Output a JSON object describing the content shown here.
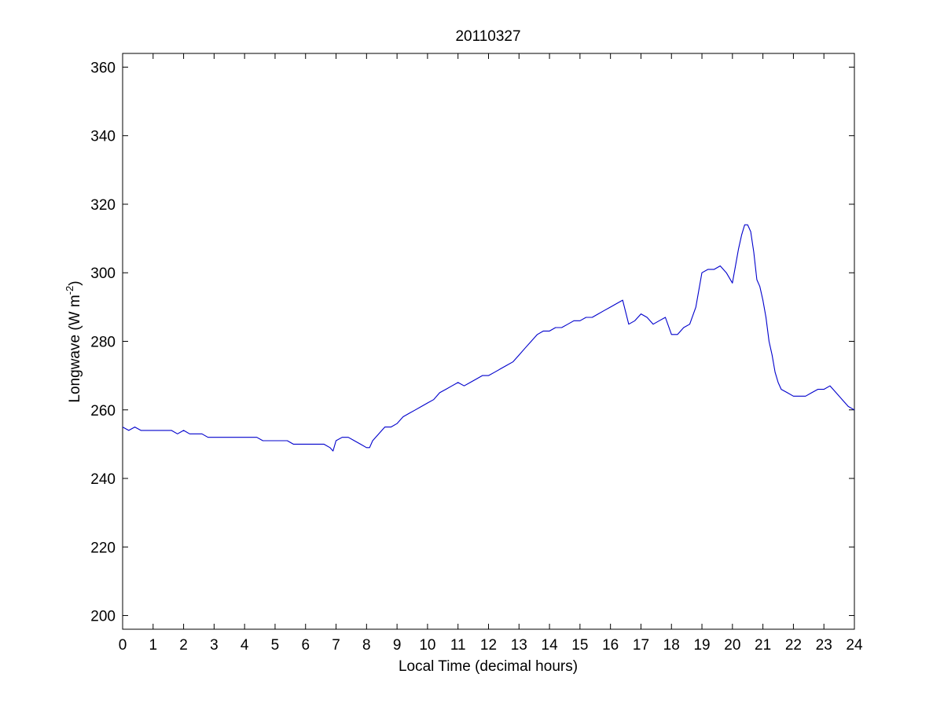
{
  "chart_data": {
    "type": "line",
    "title": "20110327",
    "xlabel": "Local Time (decimal hours)",
    "ylabel": {
      "main": "Longwave (W m",
      "superscript": "-2",
      "close": ")"
    },
    "xlim": [
      0,
      24
    ],
    "ylim": [
      196,
      364
    ],
    "xticks": [
      0,
      1,
      2,
      3,
      4,
      5,
      6,
      7,
      8,
      9,
      10,
      11,
      12,
      13,
      14,
      15,
      16,
      17,
      18,
      19,
      20,
      21,
      22,
      23,
      24
    ],
    "yticks": [
      200,
      220,
      240,
      260,
      280,
      300,
      320,
      340,
      360
    ],
    "grid": false,
    "legend": "none",
    "line_color": "#0000cc",
    "series": [
      {
        "x": [
          0,
          0.2,
          0.4,
          0.6,
          0.8,
          1.0,
          1.2,
          1.4,
          1.6,
          1.8,
          2.0,
          2.2,
          2.4,
          2.6,
          2.8,
          3.0,
          3.2,
          3.4,
          3.6,
          3.8,
          4.0,
          4.2,
          4.4,
          4.6,
          4.8,
          5.0,
          5.2,
          5.4,
          5.6,
          5.8,
          6.0,
          6.2,
          6.4,
          6.6,
          6.8,
          6.9,
          7.0,
          7.2,
          7.4,
          7.6,
          7.8,
          8.0,
          8.1,
          8.2,
          8.4,
          8.6,
          8.8,
          9.0,
          9.2,
          9.4,
          9.6,
          9.8,
          10.0,
          10.2,
          10.4,
          10.6,
          10.8,
          11.0,
          11.2,
          11.4,
          11.6,
          11.8,
          12.0,
          12.2,
          12.4,
          12.6,
          12.8,
          13.0,
          13.2,
          13.4,
          13.6,
          13.8,
          14.0,
          14.2,
          14.4,
          14.6,
          14.8,
          15.0,
          15.2,
          15.4,
          15.6,
          15.8,
          16.0,
          16.2,
          16.4,
          16.6,
          16.8,
          17.0,
          17.2,
          17.4,
          17.6,
          17.8,
          18.0,
          18.2,
          18.4,
          18.6,
          18.8,
          19.0,
          19.2,
          19.4,
          19.6,
          19.8,
          20.0,
          20.1,
          20.2,
          20.3,
          20.4,
          20.5,
          20.6,
          20.7,
          20.8,
          20.9,
          21.0,
          21.1,
          21.2,
          21.3,
          21.4,
          21.5,
          21.6,
          21.8,
          22.0,
          22.2,
          22.4,
          22.6,
          22.8,
          23.0,
          23.2,
          23.4,
          23.6,
          23.8,
          24.0
        ],
        "y": [
          255,
          254,
          255,
          254,
          254,
          254,
          254,
          254,
          254,
          253,
          254,
          253,
          253,
          253,
          252,
          252,
          252,
          252,
          252,
          252,
          252,
          252,
          252,
          251,
          251,
          251,
          251,
          251,
          250,
          250,
          250,
          250,
          250,
          250,
          249,
          248,
          251,
          252,
          252,
          251,
          250,
          249,
          249,
          251,
          253,
          255,
          255,
          256,
          258,
          259,
          260,
          261,
          262,
          263,
          265,
          266,
          267,
          268,
          267,
          268,
          269,
          270,
          270,
          271,
          272,
          273,
          274,
          276,
          278,
          280,
          282,
          283,
          283,
          284,
          284,
          285,
          286,
          286,
          287,
          287,
          288,
          289,
          290,
          291,
          292,
          285,
          286,
          288,
          287,
          285,
          286,
          287,
          282,
          282,
          284,
          285,
          290,
          300,
          301,
          301,
          302,
          300,
          297,
          302,
          307,
          311,
          314,
          314,
          312,
          306,
          298,
          296,
          292,
          287,
          280,
          276,
          271,
          268,
          266,
          265,
          264,
          264,
          264,
          265,
          266,
          266,
          267,
          265,
          263,
          261,
          260
        ]
      }
    ]
  }
}
